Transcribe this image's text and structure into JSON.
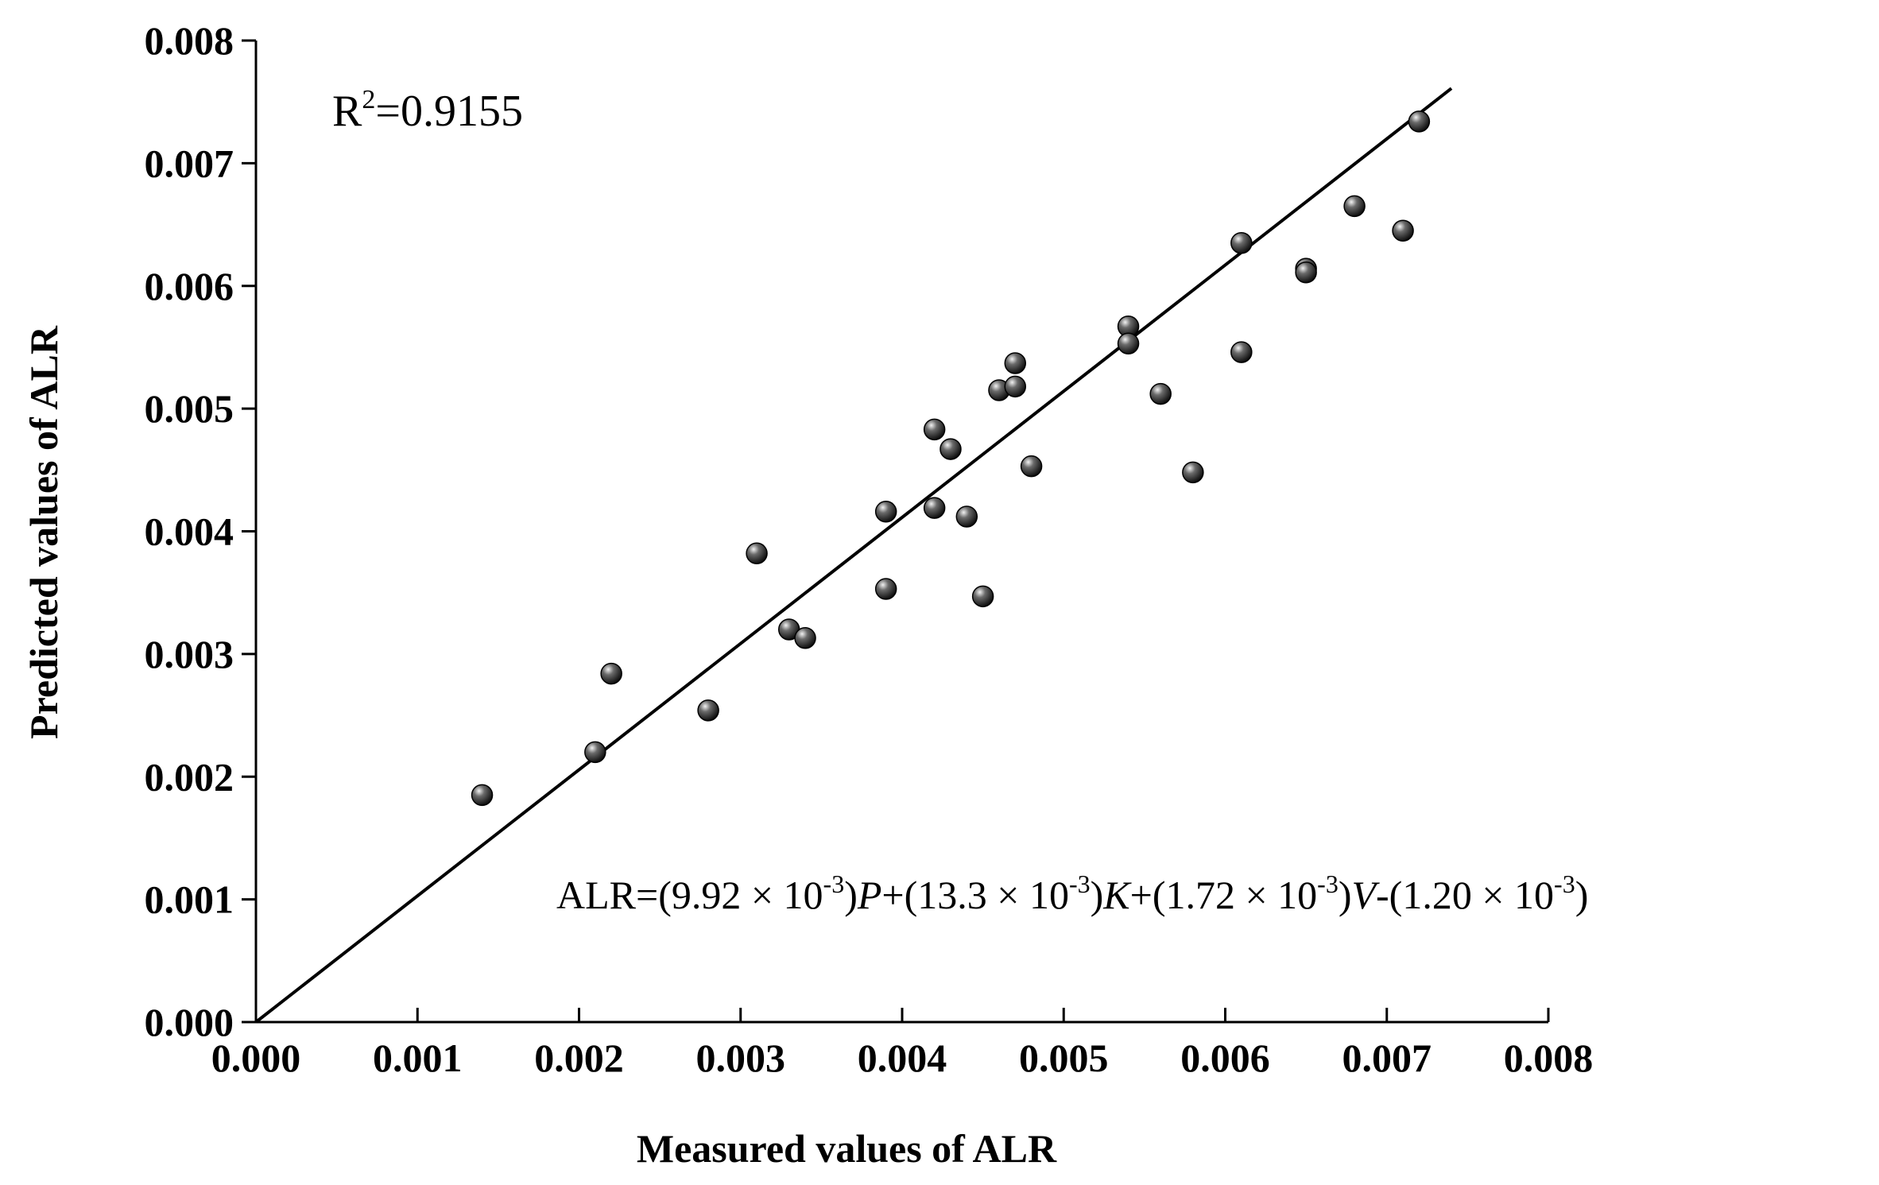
{
  "chart_data": {
    "type": "scatter",
    "xlabel": "Measured values of ALR",
    "ylabel": "Predicted values of ALR",
    "xlim": [
      0,
      0.008
    ],
    "ylim": [
      0,
      0.008
    ],
    "x_ticks": [
      "0.000",
      "0.001",
      "0.002",
      "0.003",
      "0.004",
      "0.005",
      "0.006",
      "0.007",
      "0.008"
    ],
    "y_ticks": [
      "0.000",
      "0.001",
      "0.002",
      "0.003",
      "0.004",
      "0.005",
      "0.006",
      "0.007",
      "0.008"
    ],
    "grid": false,
    "r2_label": {
      "base": "R",
      "exp": "2",
      "rest": "=0.9155"
    },
    "equation": {
      "p1": "ALR=(9.92 × 10",
      "e1": "-3",
      "p2": ")",
      "v1": "P",
      "p3": "+(13.3 × 10",
      "e2": "-3",
      "p4": ")",
      "v2": "K",
      "p5": "+(1.72 × 10",
      "e3": "-3",
      "p6": ")",
      "v3": "V",
      "p7": "-(1.20 × 10",
      "e4": "-3",
      "p8": ")"
    },
    "fit_line": {
      "x": [
        0,
        0.0074
      ],
      "y": [
        0,
        0.00761
      ]
    },
    "points": [
      {
        "x": 0.0014,
        "y": 0.00185
      },
      {
        "x": 0.0021,
        "y": 0.0022
      },
      {
        "x": 0.0022,
        "y": 0.00284
      },
      {
        "x": 0.0028,
        "y": 0.00254
      },
      {
        "x": 0.0031,
        "y": 0.00382
      },
      {
        "x": 0.0033,
        "y": 0.0032
      },
      {
        "x": 0.0034,
        "y": 0.00313
      },
      {
        "x": 0.0039,
        "y": 0.00416
      },
      {
        "x": 0.0039,
        "y": 0.00353
      },
      {
        "x": 0.0042,
        "y": 0.00483
      },
      {
        "x": 0.0042,
        "y": 0.00419
      },
      {
        "x": 0.0043,
        "y": 0.00467
      },
      {
        "x": 0.0044,
        "y": 0.00412
      },
      {
        "x": 0.0045,
        "y": 0.00347
      },
      {
        "x": 0.0046,
        "y": 0.00515
      },
      {
        "x": 0.0047,
        "y": 0.00537
      },
      {
        "x": 0.0047,
        "y": 0.00518
      },
      {
        "x": 0.0048,
        "y": 0.00453
      },
      {
        "x": 0.0054,
        "y": 0.00567
      },
      {
        "x": 0.0054,
        "y": 0.00553
      },
      {
        "x": 0.0056,
        "y": 0.00512
      },
      {
        "x": 0.0058,
        "y": 0.00448
      },
      {
        "x": 0.0061,
        "y": 0.00635
      },
      {
        "x": 0.0061,
        "y": 0.00546
      },
      {
        "x": 0.0065,
        "y": 0.00614
      },
      {
        "x": 0.0065,
        "y": 0.00611
      },
      {
        "x": 0.0068,
        "y": 0.00665
      },
      {
        "x": 0.0071,
        "y": 0.00645
      },
      {
        "x": 0.0072,
        "y": 0.00734
      }
    ]
  }
}
